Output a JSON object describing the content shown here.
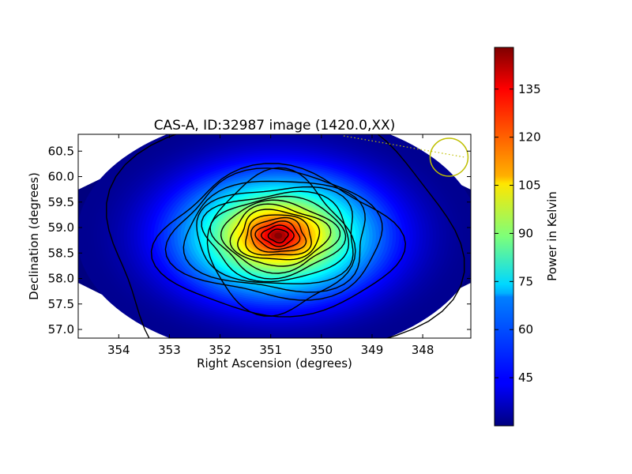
{
  "chart_data": [
    {
      "type": "heatmap",
      "title": "CAS-A, ID:32987 image (1420.0,XX)",
      "xlabel": "Right Ascension (degrees)",
      "ylabel": "Declination (degrees)",
      "xlim": [
        354.8,
        347.05
      ],
      "ylim": [
        56.83,
        60.83
      ],
      "x_inverted": true,
      "xticks": [
        354,
        353,
        352,
        351,
        350,
        349,
        348
      ],
      "xtick_labels": [
        "354",
        "353",
        "352",
        "351",
        "350",
        "349",
        "348"
      ],
      "yticks": [
        57.0,
        57.5,
        58.0,
        58.5,
        59.0,
        59.5,
        60.0,
        60.5
      ],
      "ytick_labels": [
        "57.0",
        "57.5",
        "58.0",
        "58.5",
        "59.0",
        "59.5",
        "60.0",
        "60.5"
      ],
      "grid": false,
      "colormap": "jet",
      "source_peak": {
        "ra": 350.85,
        "dec": 58.84,
        "value": 147
      },
      "background_level": 32,
      "contour_levels": [
        35,
        42,
        49,
        56,
        63,
        70,
        77,
        84,
        91,
        98,
        105,
        112,
        119,
        126,
        133,
        140
      ],
      "beam_circle": {
        "ra": 347.48,
        "dec": 60.38,
        "color": "#bfbf00"
      },
      "beam_track_color": "#bfbf00"
    },
    {
      "type": "colorbar",
      "label": "Power in Kelvin",
      "vmin": 30,
      "vmax": 148,
      "ticks": [
        45,
        60,
        75,
        90,
        105,
        120,
        135
      ],
      "tick_labels": [
        "45",
        "60",
        "75",
        "90",
        "105",
        "120",
        "135"
      ],
      "colormap": "jet"
    }
  ]
}
